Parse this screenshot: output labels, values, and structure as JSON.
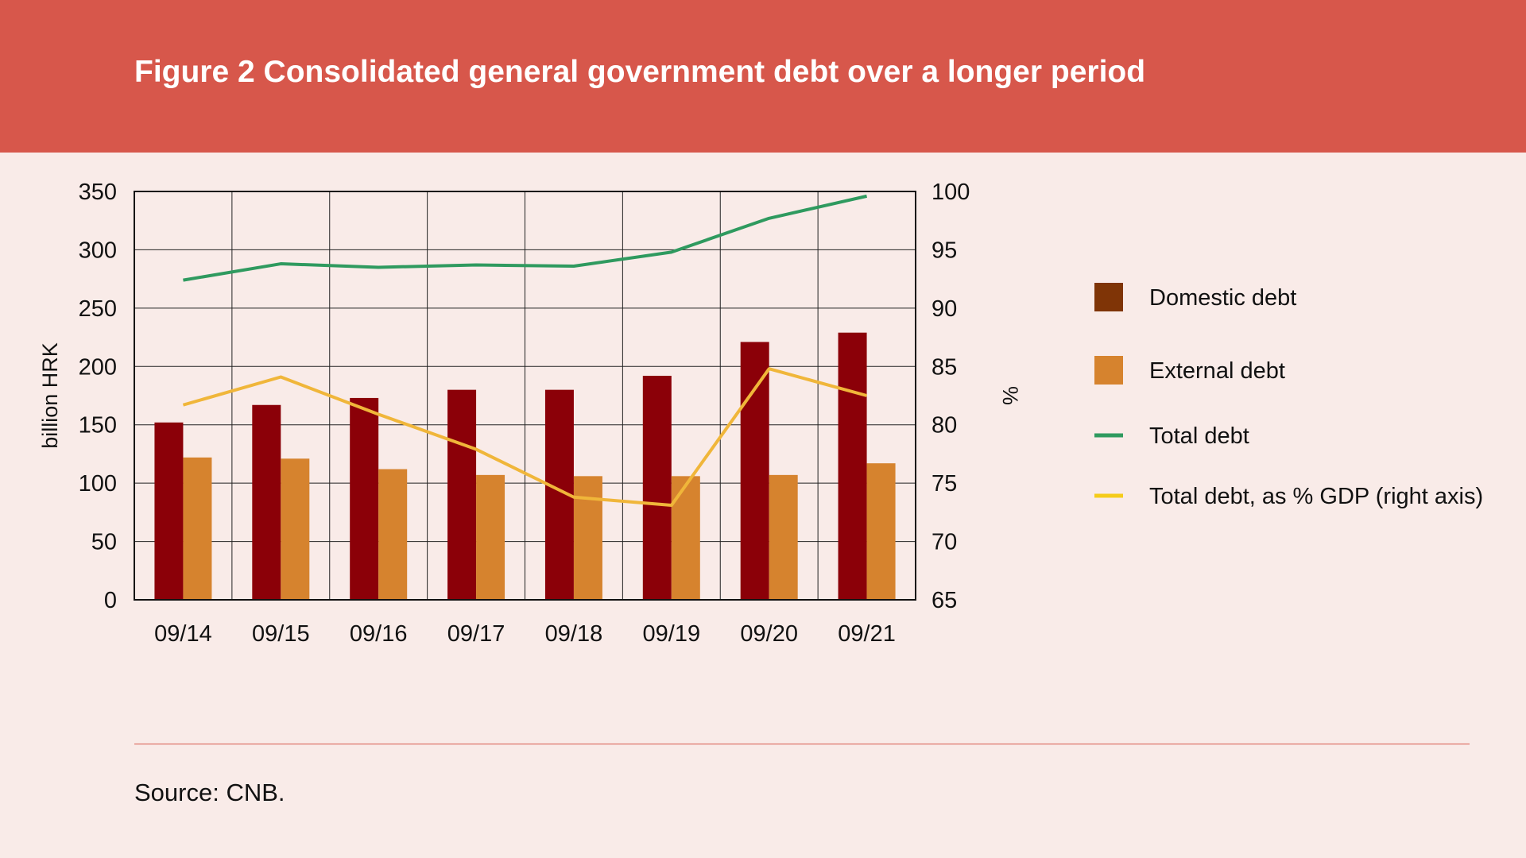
{
  "header": {
    "title": "Figure 2 Consolidated general government debt over a longer period"
  },
  "footer": {
    "source": "Source: CNB."
  },
  "colors": {
    "header_bg": "#d7574b",
    "page_bg": "#f9ebe8",
    "domestic_bar": "#8b0008",
    "external_bar": "#d6832e",
    "total_line": "#2f9a5f",
    "gdp_line": "#f0b63a",
    "legend_domestic_swatch": "#7f3406",
    "legend_gdp_swatch": "#f5cc1a"
  },
  "chart_data": {
    "type": "bar",
    "categories": [
      "09/14",
      "09/15",
      "09/16",
      "09/17",
      "09/18",
      "09/19",
      "09/20",
      "09/21"
    ],
    "ylabel": "billion HRK",
    "y2label": "%",
    "ylim": [
      0,
      350
    ],
    "y2lim": [
      65,
      100
    ],
    "yticks": [
      0,
      50,
      100,
      150,
      200,
      250,
      300,
      350
    ],
    "y2ticks": [
      65,
      70,
      75,
      80,
      85,
      90,
      95,
      100
    ],
    "grid": true,
    "legend_position": "right",
    "series": [
      {
        "name": "Domestic debt",
        "type": "bar",
        "axis": "left",
        "values": [
          152,
          167,
          173,
          180,
          180,
          192,
          221,
          229
        ]
      },
      {
        "name": "External debt",
        "type": "bar",
        "axis": "left",
        "values": [
          122,
          121,
          112,
          107,
          106,
          106,
          107,
          117
        ]
      },
      {
        "name": "Total debt",
        "type": "line",
        "axis": "left",
        "values": [
          274,
          288,
          285,
          287,
          286,
          298,
          327,
          346
        ]
      },
      {
        "name": "Total debt, as % GDP (right axis)",
        "type": "line",
        "axis": "right",
        "values": [
          81.7,
          84.1,
          80.9,
          77.9,
          73.8,
          73.1,
          84.8,
          82.5
        ]
      }
    ]
  }
}
